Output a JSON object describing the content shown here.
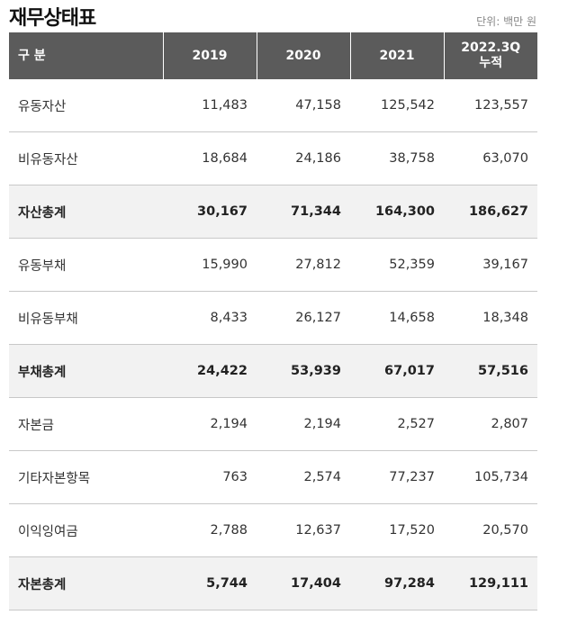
{
  "header": {
    "title": "재무상태표",
    "unit": "단위: 백만 원"
  },
  "table": {
    "columns": [
      "구 분",
      "2019",
      "2020",
      "2021",
      "2022.3Q\n누적"
    ],
    "rows": [
      [
        "유동자산",
        "11,483",
        "47,158",
        "125,542",
        "123,557"
      ],
      [
        "비유동자산",
        "18,684",
        "24,186",
        "38,758",
        "63,070"
      ],
      [
        "자산총계",
        "30,167",
        "71,344",
        "164,300",
        "186,627"
      ],
      [
        "유동부채",
        "15,990",
        "27,812",
        "52,359",
        "39,167"
      ],
      [
        "비유동부채",
        "8,433",
        "26,127",
        "14,658",
        "18,348"
      ],
      [
        "부채총계",
        "24,422",
        "53,939",
        "67,017",
        "57,516"
      ],
      [
        "자본금",
        "2,194",
        "2,194",
        "2,527",
        "2,807"
      ],
      [
        "기타자본항목",
        "763",
        "2,574",
        "77,237",
        "105,734"
      ],
      [
        "이익잉여금",
        "2,788",
        "12,637",
        "17,520",
        "20,570"
      ],
      [
        "자본총계",
        "5,744",
        "17,404",
        "97,284",
        "129,111"
      ]
    ]
  }
}
